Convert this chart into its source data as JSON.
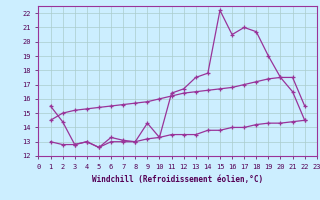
{
  "xlabel": "Windchill (Refroidissement éolien,°C)",
  "bg_color": "#cceeff",
  "grid_color": "#aacccc",
  "line_color": "#993399",
  "xlim": [
    0,
    23
  ],
  "ylim": [
    12,
    22.5
  ],
  "xticks": [
    0,
    1,
    2,
    3,
    4,
    5,
    6,
    7,
    8,
    9,
    10,
    11,
    12,
    13,
    14,
    15,
    16,
    17,
    18,
    19,
    20,
    21,
    22,
    23
  ],
  "yticks": [
    12,
    13,
    14,
    15,
    16,
    17,
    18,
    19,
    20,
    21,
    22
  ],
  "curves": [
    {
      "x": [
        1,
        2,
        3,
        4,
        5,
        6,
        7,
        8,
        9,
        10,
        11,
        12,
        13,
        14,
        15,
        16,
        17,
        18,
        19,
        20,
        21,
        22
      ],
      "y": [
        15.5,
        14.4,
        12.8,
        13.0,
        12.6,
        13.3,
        13.1,
        13.0,
        14.3,
        13.3,
        16.4,
        16.7,
        17.5,
        17.8,
        22.2,
        20.5,
        21.0,
        20.7,
        19.0,
        17.5,
        16.5,
        14.5
      ]
    },
    {
      "x": [
        1,
        2,
        3,
        4,
        5,
        6,
        7,
        8,
        9,
        10,
        11,
        12,
        13,
        14,
        15,
        16,
        17,
        18,
        19,
        20,
        21,
        22
      ],
      "y": [
        14.5,
        15.0,
        15.2,
        15.3,
        15.4,
        15.5,
        15.6,
        15.7,
        15.8,
        16.0,
        16.2,
        16.4,
        16.5,
        16.6,
        16.7,
        16.8,
        17.0,
        17.2,
        17.4,
        17.5,
        17.5,
        15.5
      ]
    },
    {
      "x": [
        1,
        2,
        3,
        4,
        5,
        6,
        7,
        8,
        9,
        10,
        11,
        12,
        13,
        14,
        15,
        16,
        17,
        18,
        19,
        20,
        21,
        22
      ],
      "y": [
        13.0,
        12.8,
        12.8,
        13.0,
        12.6,
        13.0,
        13.0,
        13.0,
        13.2,
        13.3,
        13.5,
        13.5,
        13.5,
        13.8,
        13.8,
        14.0,
        14.0,
        14.2,
        14.3,
        14.3,
        14.4,
        14.5
      ]
    }
  ]
}
